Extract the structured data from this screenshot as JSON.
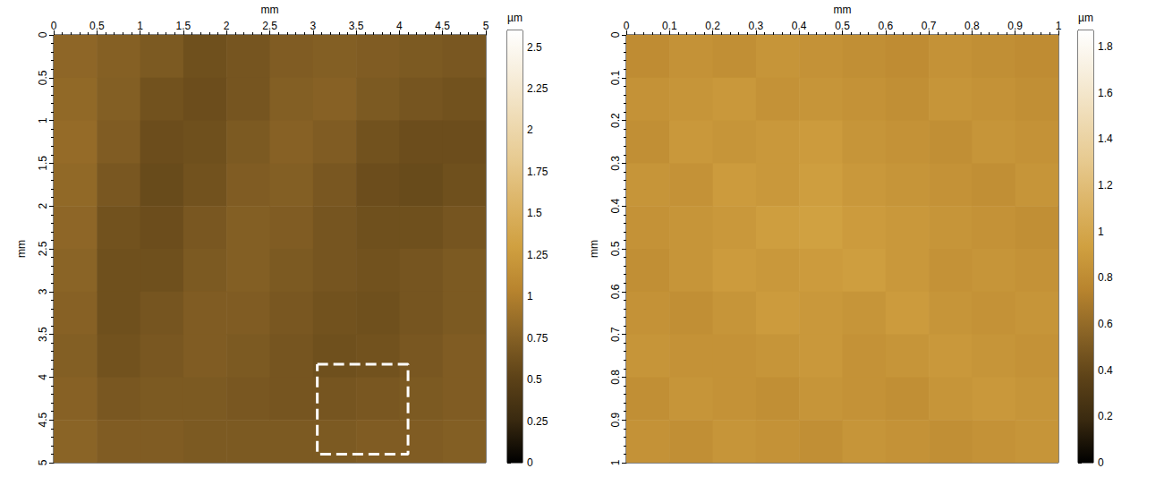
{
  "chart_data": [
    {
      "type": "heatmap",
      "x_label": "mm",
      "y_label": "mm",
      "xlim": [
        0,
        5
      ],
      "ylim": [
        0,
        5
      ],
      "xticks": [
        0,
        0.5,
        1,
        1.5,
        2,
        2.5,
        3,
        3.5,
        4,
        4.5,
        5
      ],
      "yticks": [
        0,
        0.5,
        1,
        1.5,
        2,
        2.5,
        3,
        3.5,
        4,
        4.5,
        5
      ],
      "colorbar": {
        "label": "µm",
        "lim": [
          0,
          2.6
        ],
        "ticks": [
          0,
          0.25,
          0.5,
          0.75,
          1,
          1.25,
          1.5,
          1.75,
          2,
          2.25,
          2.5
        ]
      },
      "colors": [
        "#000000",
        "#3a2a10",
        "#5e4318",
        "#8a6426",
        "#b8842e",
        "#d0a040",
        "#dcb466",
        "#e7ca90",
        "#efdcb6",
        "#f7eedc",
        "#ffffff"
      ],
      "cells": [
        [
          0.8,
          0.75,
          0.7,
          0.62,
          0.66,
          0.72,
          0.74,
          0.72,
          0.7,
          0.68
        ],
        [
          0.82,
          0.74,
          0.64,
          0.6,
          0.66,
          0.74,
          0.76,
          0.7,
          0.66,
          0.64
        ],
        [
          0.84,
          0.72,
          0.6,
          0.62,
          0.7,
          0.76,
          0.72,
          0.64,
          0.6,
          0.6
        ],
        [
          0.82,
          0.68,
          0.58,
          0.64,
          0.72,
          0.74,
          0.68,
          0.6,
          0.58,
          0.62
        ],
        [
          0.8,
          0.64,
          0.6,
          0.68,
          0.74,
          0.72,
          0.66,
          0.62,
          0.62,
          0.66
        ],
        [
          0.78,
          0.62,
          0.62,
          0.7,
          0.74,
          0.7,
          0.66,
          0.64,
          0.66,
          0.7
        ],
        [
          0.76,
          0.62,
          0.66,
          0.72,
          0.72,
          0.68,
          0.64,
          0.62,
          0.66,
          0.7
        ],
        [
          0.74,
          0.64,
          0.68,
          0.72,
          0.7,
          0.66,
          0.62,
          0.64,
          0.68,
          0.72
        ],
        [
          0.76,
          0.68,
          0.7,
          0.7,
          0.68,
          0.66,
          0.66,
          0.68,
          0.7,
          0.72
        ],
        [
          0.78,
          0.72,
          0.72,
          0.7,
          0.7,
          0.7,
          0.7,
          0.72,
          0.72,
          0.74
        ]
      ],
      "annotation": {
        "x": [
          3.05,
          4.1
        ],
        "y": [
          3.85,
          4.9
        ],
        "line_style": "dashed",
        "color": "#ffffff"
      }
    },
    {
      "type": "heatmap",
      "x_label": "mm",
      "y_label": "mm",
      "xlim": [
        0,
        1
      ],
      "ylim": [
        0,
        1
      ],
      "xticks": [
        0,
        0.1,
        0.2,
        0.3,
        0.4,
        0.5,
        0.6,
        0.7,
        0.8,
        0.9,
        1
      ],
      "yticks": [
        0,
        0.1,
        0.2,
        0.3,
        0.4,
        0.5,
        0.6,
        0.7,
        0.8,
        0.9,
        1
      ],
      "colorbar": {
        "label": "µm",
        "lim": [
          0,
          1.87
        ],
        "ticks": [
          0,
          0.2,
          0.4,
          0.6,
          0.8,
          1,
          1.2,
          1.4,
          1.6,
          1.8
        ]
      },
      "colors": [
        "#000000",
        "#3a2a10",
        "#5e4318",
        "#8a6426",
        "#b8842e",
        "#d0a040",
        "#dcb466",
        "#e7ca90",
        "#efdcb6",
        "#f7eedc",
        "#ffffff"
      ],
      "cells": [
        [
          0.8,
          0.84,
          0.82,
          0.86,
          0.84,
          0.82,
          0.8,
          0.84,
          0.82,
          0.8
        ],
        [
          0.84,
          0.86,
          0.88,
          0.84,
          0.86,
          0.84,
          0.82,
          0.86,
          0.84,
          0.82
        ],
        [
          0.82,
          0.88,
          0.86,
          0.88,
          0.9,
          0.86,
          0.84,
          0.82,
          0.86,
          0.84
        ],
        [
          0.86,
          0.84,
          0.9,
          0.88,
          0.92,
          0.88,
          0.86,
          0.84,
          0.82,
          0.86
        ],
        [
          0.84,
          0.86,
          0.88,
          0.92,
          0.94,
          0.9,
          0.88,
          0.86,
          0.84,
          0.82
        ],
        [
          0.82,
          0.86,
          0.9,
          0.88,
          0.9,
          0.92,
          0.88,
          0.84,
          0.86,
          0.84
        ],
        [
          0.84,
          0.82,
          0.86,
          0.9,
          0.88,
          0.86,
          0.9,
          0.86,
          0.84,
          0.86
        ],
        [
          0.86,
          0.84,
          0.84,
          0.86,
          0.88,
          0.84,
          0.86,
          0.88,
          0.86,
          0.84
        ],
        [
          0.82,
          0.86,
          0.84,
          0.82,
          0.86,
          0.84,
          0.82,
          0.86,
          0.88,
          0.86
        ],
        [
          0.84,
          0.82,
          0.86,
          0.84,
          0.82,
          0.86,
          0.84,
          0.82,
          0.84,
          0.86
        ]
      ]
    }
  ]
}
